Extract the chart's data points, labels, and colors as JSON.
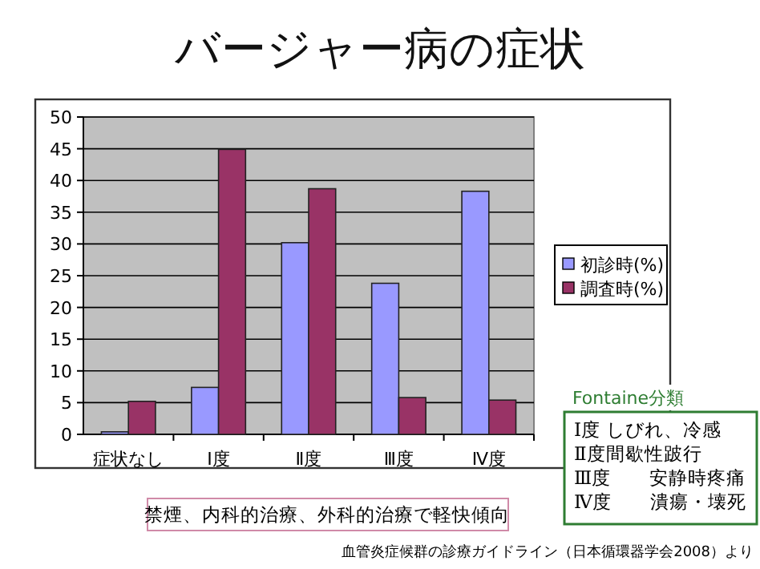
{
  "chart_data": {
    "type": "bar",
    "title": "バージャー病の症状",
    "categories": [
      "症状なし",
      "Ⅰ度",
      "Ⅱ度",
      "Ⅲ度",
      "Ⅳ度"
    ],
    "series": [
      {
        "name": "初診時(%)",
        "color": "#9999ff",
        "values": [
          0.4,
          7.4,
          30.2,
          23.8,
          38.3
        ]
      },
      {
        "name": "調査時(%)",
        "color": "#993366",
        "values": [
          5.2,
          44.9,
          38.7,
          5.8,
          5.4
        ]
      }
    ],
    "ylim": [
      0,
      50
    ],
    "yticks": [
      0,
      5,
      10,
      15,
      20,
      25,
      30,
      35,
      40,
      45,
      50
    ],
    "grid": "y",
    "legend": "right",
    "annotations": [
      "Fontaine分類",
      "Ⅰ度 しびれ、冷感",
      "Ⅱ度間歇性跛行",
      "Ⅲ度　　安静時疼痛",
      "Ⅳ度　　潰瘍・壊死",
      "禁煙、内科的治療、外科的治療で軽快傾向",
      "血管炎症候群の診療ガイドライン（日本循環器学会2008）より"
    ]
  }
}
